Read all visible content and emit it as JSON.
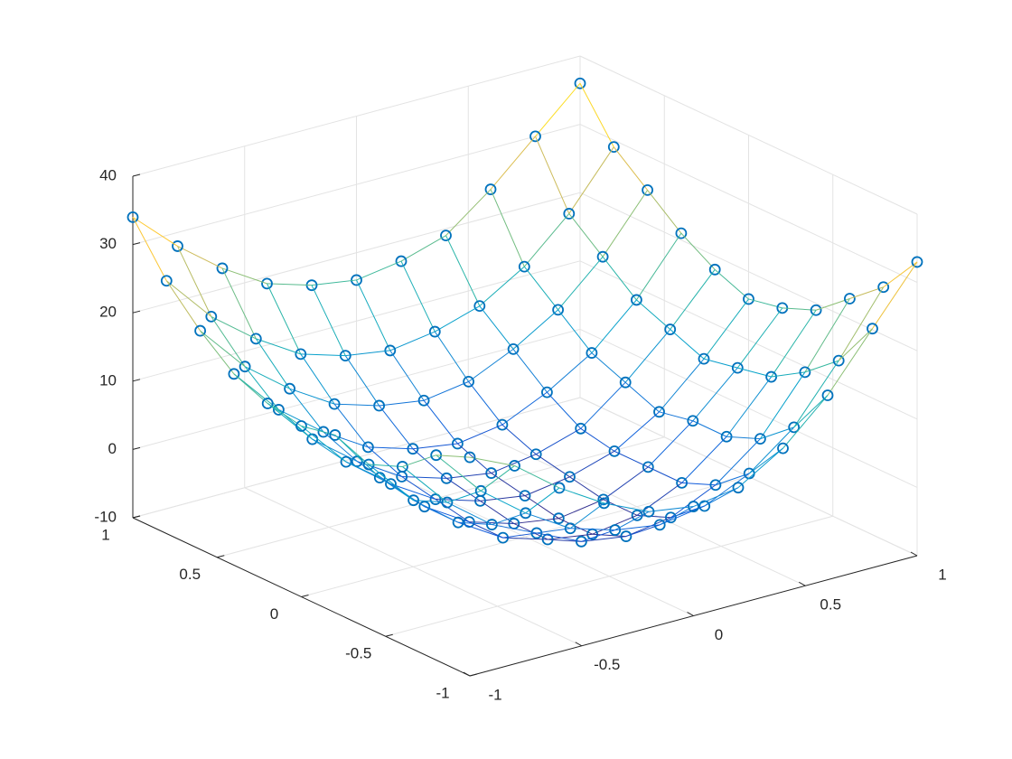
{
  "chart_data": {
    "type": "mesh3d",
    "x": [
      -1,
      -0.8,
      -0.6,
      -0.4,
      -0.2,
      0,
      0.2,
      0.4,
      0.6,
      0.8,
      1
    ],
    "y": [
      -1,
      -0.8,
      -0.6,
      -0.4,
      -0.2,
      0,
      0.2,
      0.4,
      0.6,
      0.8,
      1
    ],
    "z": [
      [
        22,
        19,
        14,
        10,
        7,
        6,
        7,
        11,
        17,
        25,
        33
      ],
      [
        20,
        13,
        8,
        4,
        2,
        1,
        2,
        5,
        10,
        18,
        27
      ],
      [
        16,
        9,
        4,
        1,
        -2,
        -3,
        -2,
        1,
        6,
        14,
        23
      ],
      [
        14,
        7,
        2,
        -2,
        -4,
        -5,
        -4,
        -1,
        4,
        11,
        19
      ],
      [
        16,
        8,
        2,
        -2,
        -4,
        -5,
        -4,
        -1,
        4,
        10,
        17
      ],
      [
        15,
        8,
        3,
        -1,
        -3,
        -4,
        -3,
        -1,
        3,
        9,
        16
      ],
      [
        16,
        9,
        4,
        0,
        -2,
        -3,
        -2,
        0,
        5,
        11,
        18
      ],
      [
        18,
        11,
        6,
        2,
        0,
        -1,
        0,
        3,
        7,
        13,
        21
      ],
      [
        22,
        15,
        10,
        6,
        4,
        3,
        4,
        7,
        11,
        17,
        25
      ],
      [
        27,
        20,
        15,
        11,
        9,
        8,
        9,
        11,
        15,
        21,
        29
      ],
      [
        34,
        28,
        23,
        19,
        17,
        16,
        17,
        19,
        24,
        30,
        36
      ]
    ],
    "xlim": [
      -1,
      1
    ],
    "ylim": [
      -1,
      1
    ],
    "zlim": [
      -10,
      40
    ],
    "xticks": [
      -1,
      -0.5,
      0,
      0.5,
      1
    ],
    "yticks": [
      -1,
      -0.5,
      0,
      0.5,
      1
    ],
    "zticks": [
      -10,
      0,
      10,
      20,
      30,
      40
    ],
    "marker_color": "#0072bd",
    "grid": true
  }
}
